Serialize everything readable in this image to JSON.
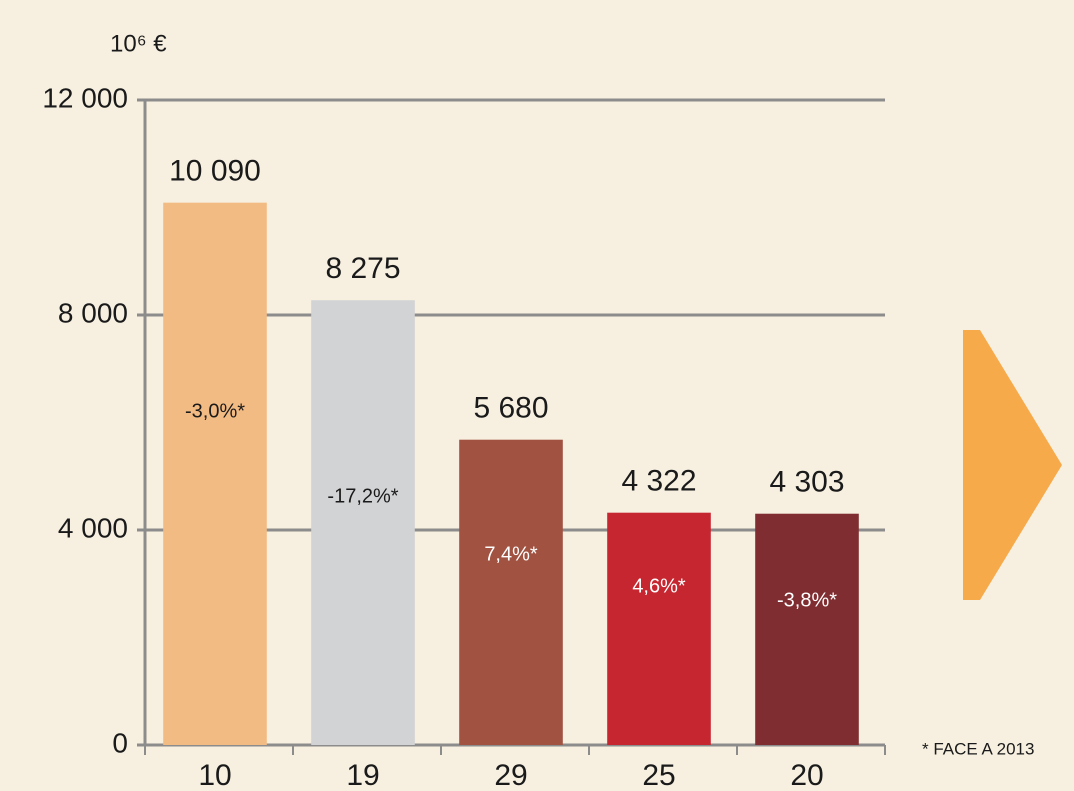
{
  "chart_data": {
    "type": "bar",
    "unit": "10⁶ €",
    "categories": [
      "10",
      "19",
      "29",
      "25",
      "20"
    ],
    "values": [
      10090,
      8275,
      5680,
      4322,
      4303
    ],
    "value_labels": [
      "10 090",
      "8 275",
      "5 680",
      "4 322",
      "4 303"
    ],
    "colors": [
      "#f3bb84",
      "#d2d3d5",
      "#a15240",
      "#c62630",
      "#7f2d30"
    ],
    "bar_labels": [
      "-3,0%*",
      "-17,2%*",
      "7,4%*",
      "4,6%*",
      "-3,8%*"
    ],
    "bar_label_colors": [
      "#1a1a1a",
      "#1a1a1a",
      "#ffffff",
      "#ffffff",
      "#ffffff"
    ],
    "ylim": [
      0,
      12000
    ],
    "yticks": [
      0,
      {
        "value": 4000,
        "label": "4 000"
      },
      {
        "value": 8000,
        "label": "8 000"
      },
      {
        "value": 12000,
        "label": "12 000"
      }
    ],
    "grid": true,
    "footnote": "* FACE A 2013"
  }
}
